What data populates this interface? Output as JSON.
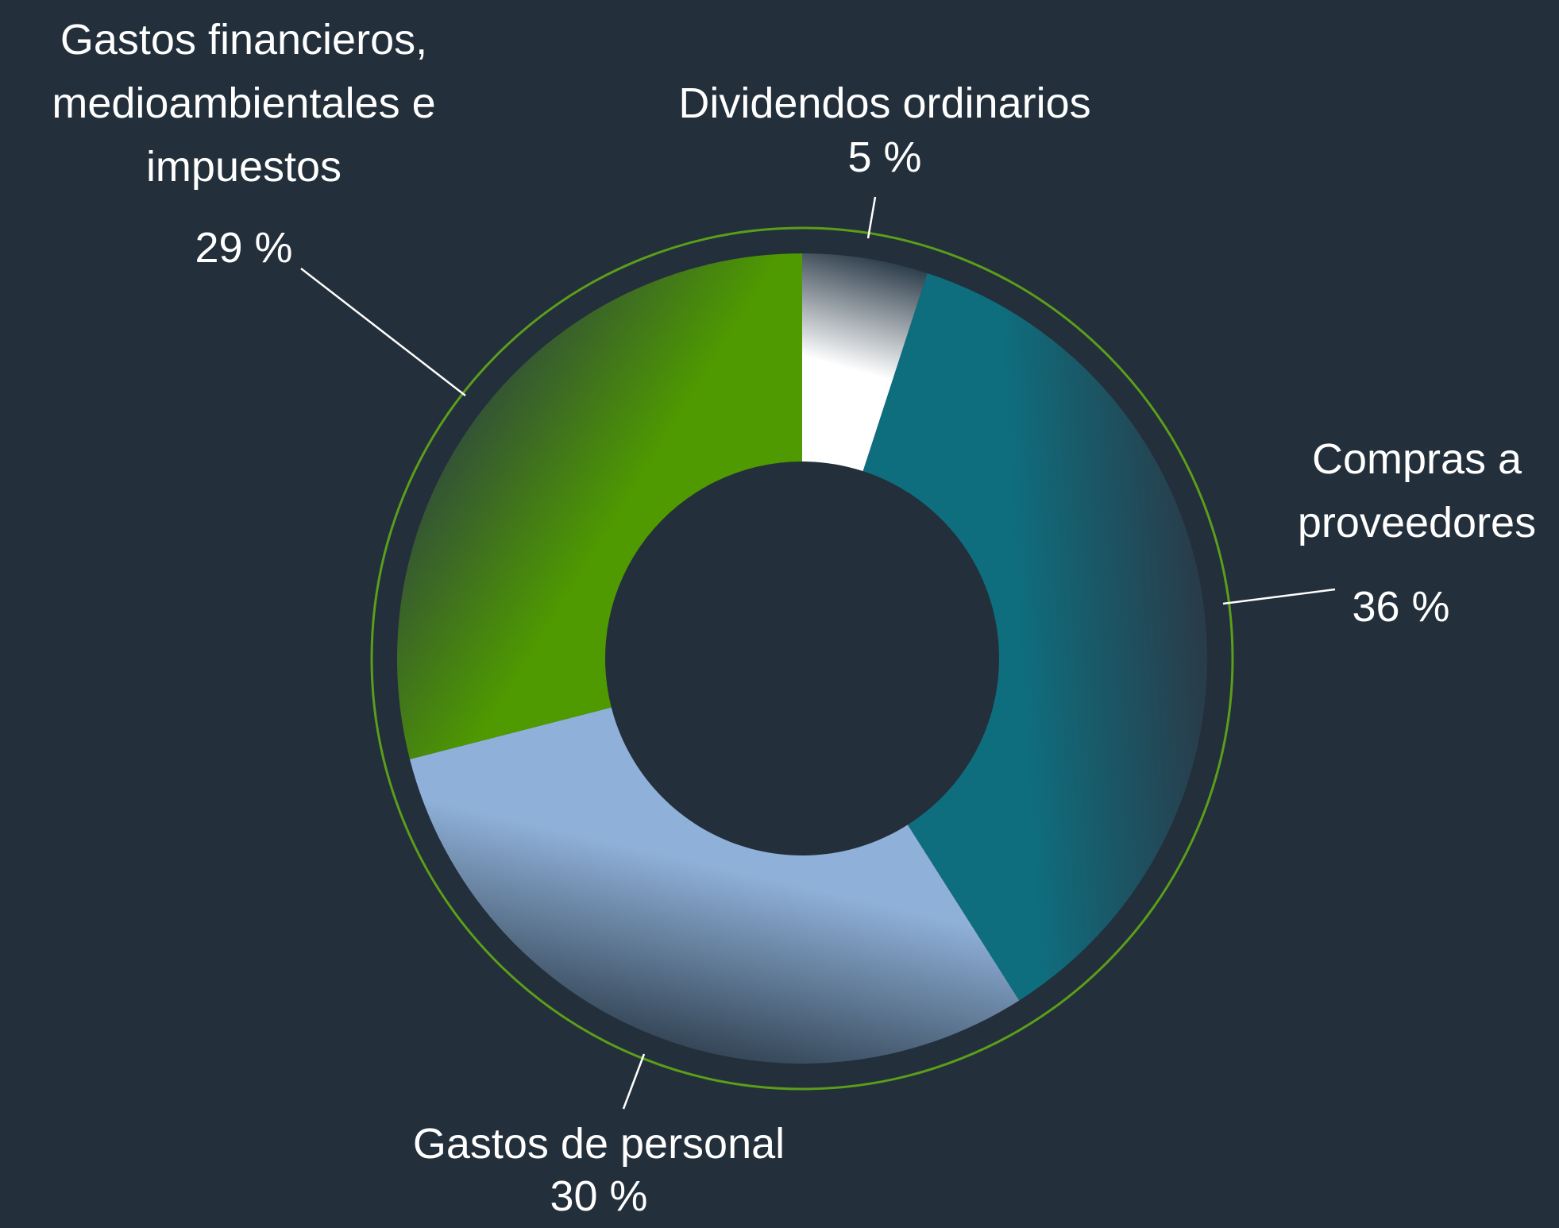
{
  "chart_data": {
    "type": "donut",
    "categories": [
      "Dividendos ordinarios",
      "Compras a proveedores",
      "Gastos de personal",
      "Gastos financieros, medioambientales e impuestos"
    ],
    "values": [
      5,
      36,
      30,
      29
    ],
    "value_labels": [
      "5 %",
      "36 %",
      "30 %",
      "29 %"
    ],
    "colors": [
      "#ffffff",
      "#0e6e7e",
      "#8fb0d8",
      "#4f9a00"
    ]
  }
}
